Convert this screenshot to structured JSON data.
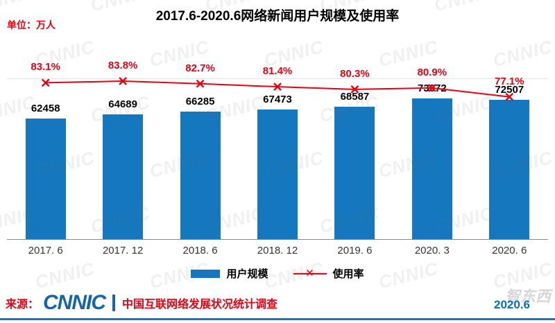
{
  "title": "2017.6-2020.6网络新闻用户规模及使用率",
  "unit_label": "单位：万人",
  "chart_data": {
    "type": "bar+line",
    "categories": [
      "2017. 6",
      "2017. 12",
      "2018. 6",
      "2018. 12",
      "2019. 6",
      "2020. 3",
      "2020. 6"
    ],
    "series": [
      {
        "name": "用户规模",
        "type": "bar",
        "unit": "万人",
        "values": [
          62458,
          64689,
          66285,
          67473,
          68587,
          73072,
          72507
        ],
        "color": "#1578BE"
      },
      {
        "name": "使用率",
        "type": "line",
        "unit": "%",
        "values": [
          83.1,
          83.8,
          82.7,
          81.4,
          80.3,
          80.9,
          77.1
        ],
        "color": "#E60012",
        "marker": "x"
      }
    ],
    "title": "2017.6-2020.6网络新闻用户规模及使用率",
    "xlabel": "",
    "ylabel": "",
    "value_labels_shown": true,
    "grid": false,
    "legend_position": "bottom"
  },
  "icons": {
    "x_marker": "✕"
  },
  "footer": {
    "source_prefix": "来源：",
    "logo_text": "CNNIC",
    "source_text": "中国互联网络发展状况统计调查",
    "date_label": "2020.6"
  },
  "watermark": {
    "logo_text": "CNNIC",
    "brand_text": "智东西"
  },
  "colors": {
    "bar_blue": "#1578BE",
    "line_red": "#E60012",
    "logo_blue": "#1565AD",
    "date_blue": "#0070C0"
  }
}
